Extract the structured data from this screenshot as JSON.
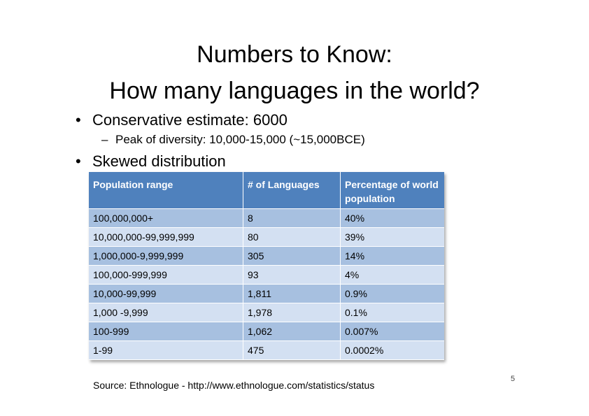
{
  "title_line1": "Numbers to Know:",
  "title_line2": "How many languages in the world?",
  "bullet1": "Conservative estimate: 6000",
  "sub1": "Peak of diversity: 10,000-15,000 (~15,000BCE)",
  "bullet2": "Skewed distribution",
  "table": {
    "headers": [
      "Population range",
      "# of Languages",
      "Percentage of world population"
    ],
    "rows": [
      [
        "100,000,000+",
        "8",
        "40%"
      ],
      [
        "10,000,000-99,999,999",
        "80",
        "39%"
      ],
      [
        "1,000,000-9,999,999",
        "305",
        "14%"
      ],
      [
        "100,000-999,999",
        "93",
        "4%"
      ],
      [
        "10,000-99,999",
        "1,811",
        "0.9%"
      ],
      [
        "1,000 -9,999",
        "1,978",
        "0.1%"
      ],
      [
        "100-999",
        "1,062",
        "0.007%"
      ],
      [
        "1-99",
        "475",
        "0.0002%"
      ]
    ]
  },
  "source": "Source: Ethnologue - http://www.ethnologue.com/statistics/status",
  "page_number": "5",
  "colors": {
    "header": "#4f81bd",
    "row_dark": "#a7c0e0",
    "row_light": "#d3e0f2"
  }
}
